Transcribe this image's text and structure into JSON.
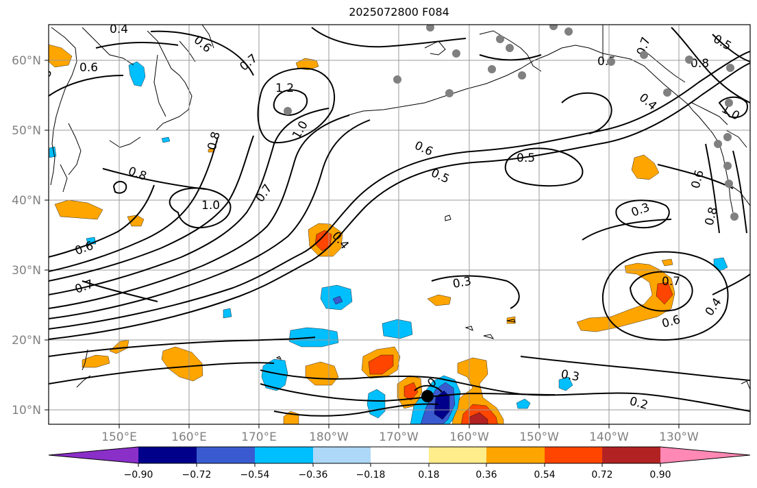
{
  "title": "2025072800 F084",
  "longitude_labels": [
    "150°E",
    "160°E",
    "170°E",
    "180°W",
    "170°W",
    "160°W",
    "150°W",
    "140°W",
    "130°W"
  ],
  "latitude_labels": [
    "60°N",
    "50°N",
    "40°N",
    "30°N",
    "20°N",
    "10°N"
  ],
  "colorbar": {
    "tick_labels": [
      "−0.90",
      "−0.72",
      "−0.54",
      "−0.36",
      "−0.18",
      "0.18",
      "0.36",
      "0.54",
      "0.72",
      "0.90"
    ],
    "bin_colors": [
      "#8b2fc9",
      "#00008b",
      "#3a5bd0",
      "#00bfff",
      "#add8f7",
      "#ffffff",
      "#ffec8b",
      "#ffa500",
      "#ff4500",
      "#b22222",
      "#ff88b4"
    ]
  },
  "contour_labels": [
    "0.4",
    "0.6",
    "0.7",
    "1.2",
    "0.8",
    "1.0",
    "0.8",
    "1.0",
    "0.7",
    "0.6",
    "0.5",
    "0.5",
    "0.3",
    "0.4",
    "0.6",
    "0.7",
    "0.3",
    "0.7",
    "0.6",
    "0.4",
    "0.3",
    "0.2",
    "0",
    "0.5",
    "0.8",
    "0.5",
    "0.4",
    "1.0",
    "0.6",
    "0.8",
    "0.7",
    "0.6",
    "8"
  ],
  "colors": {
    "warm_fill": "#ffa500",
    "strong_warm_fill": "#ff4500",
    "very_strong_warm_fill": "#b22222",
    "cool_fill": "#00bfff",
    "strong_cool_fill": "#3a5bd0",
    "very_strong_cool_fill": "#00008b",
    "station_dot": "#808080",
    "storm_center": "#000000"
  }
}
